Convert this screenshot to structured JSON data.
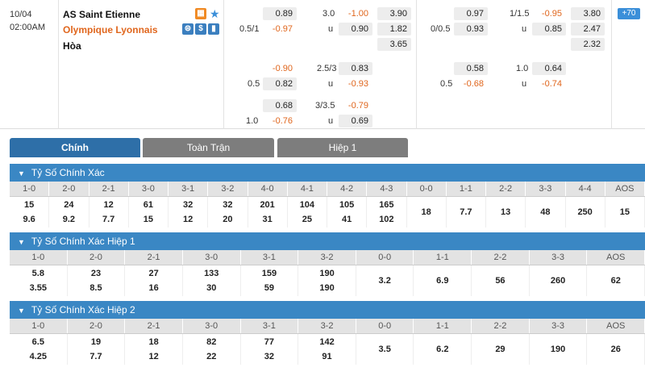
{
  "match": {
    "date": "10/04",
    "time": "02:00AM",
    "home": "AS Saint Etienne",
    "away": "Olympique Lyonnais",
    "draw": "Hòa",
    "more_count": "+70"
  },
  "odds_ft": {
    "row1": {
      "h": "0.89",
      "ou_line": "3.0",
      "ou_o": "-1.00",
      "x12": "3.90"
    },
    "row2": {
      "hcap_line": "0.5/1",
      "a": "-0.97",
      "ou_u_label": "u",
      "ou_u": "0.90",
      "x12": "1.82"
    },
    "row3": {
      "x12": "3.65"
    },
    "row4": {
      "h": "-0.90",
      "ou_line": "2.5/3",
      "ou_o": "0.83"
    },
    "row5": {
      "hcap_line": "0.5",
      "a": "0.82",
      "ou_u_label": "u",
      "ou_u": "-0.93"
    },
    "row6": {
      "h": "0.68",
      "ou_line": "3/3.5",
      "ou_o": "-0.79"
    },
    "row7": {
      "hcap_line": "1.0",
      "a": "-0.76",
      "ou_u_label": "u",
      "ou_u": "0.69"
    }
  },
  "odds_ht": {
    "row1": {
      "h": "0.97",
      "ou_line": "1/1.5",
      "ou_o": "-0.95",
      "x12": "3.80"
    },
    "row2": {
      "hcap_line": "0/0.5",
      "a": "0.93",
      "ou_u_label": "u",
      "ou_u": "0.85",
      "x12": "2.47"
    },
    "row3": {
      "x12": "2.32"
    },
    "row4": {
      "h": "0.58",
      "ou_line": "1.0",
      "ou_o": "0.64"
    },
    "row5": {
      "hcap_line": "0.5",
      "a": "-0.68",
      "ou_u_label": "u",
      "ou_u": "-0.74"
    }
  },
  "tabs": [
    "Chính",
    "Toàn Trận",
    "Hiệp 1"
  ],
  "sections": [
    {
      "title": "Tỷ Số Chính Xác",
      "headers": [
        "1-0",
        "2-0",
        "2-1",
        "3-0",
        "3-1",
        "3-2",
        "4-0",
        "4-1",
        "4-2",
        "4-3",
        "0-0",
        "1-1",
        "2-2",
        "3-3",
        "4-4",
        "AOS"
      ],
      "top": [
        "15",
        "24",
        "12",
        "61",
        "32",
        "32",
        "201",
        "104",
        "105",
        "165",
        "18",
        "7.7",
        "13",
        "48",
        "250",
        "15"
      ],
      "bottom": [
        "9.6",
        "9.2",
        "7.7",
        "15",
        "12",
        "20",
        "31",
        "25",
        "41",
        "102",
        "",
        "",
        "",
        "",
        "",
        ""
      ]
    },
    {
      "title": "Tỷ Số Chính Xác Hiệp 1",
      "headers": [
        "1-0",
        "2-0",
        "2-1",
        "3-0",
        "3-1",
        "3-2",
        "0-0",
        "1-1",
        "2-2",
        "3-3",
        "AOS"
      ],
      "top": [
        "5.8",
        "23",
        "27",
        "133",
        "159",
        "190",
        "3.2",
        "6.9",
        "56",
        "260",
        "62"
      ],
      "bottom": [
        "3.55",
        "8.5",
        "16",
        "30",
        "59",
        "190",
        "",
        "",
        "",
        "",
        ""
      ]
    },
    {
      "title": "Tỷ Số Chính Xác Hiệp 2",
      "headers": [
        "1-0",
        "2-0",
        "2-1",
        "3-0",
        "3-1",
        "3-2",
        "0-0",
        "1-1",
        "2-2",
        "3-3",
        "AOS"
      ],
      "top": [
        "6.5",
        "19",
        "18",
        "82",
        "77",
        "142",
        "3.5",
        "6.2",
        "29",
        "190",
        "26"
      ],
      "bottom": [
        "4.25",
        "7.7",
        "12",
        "22",
        "32",
        "91",
        "",
        "",
        "",
        "",
        ""
      ]
    }
  ]
}
